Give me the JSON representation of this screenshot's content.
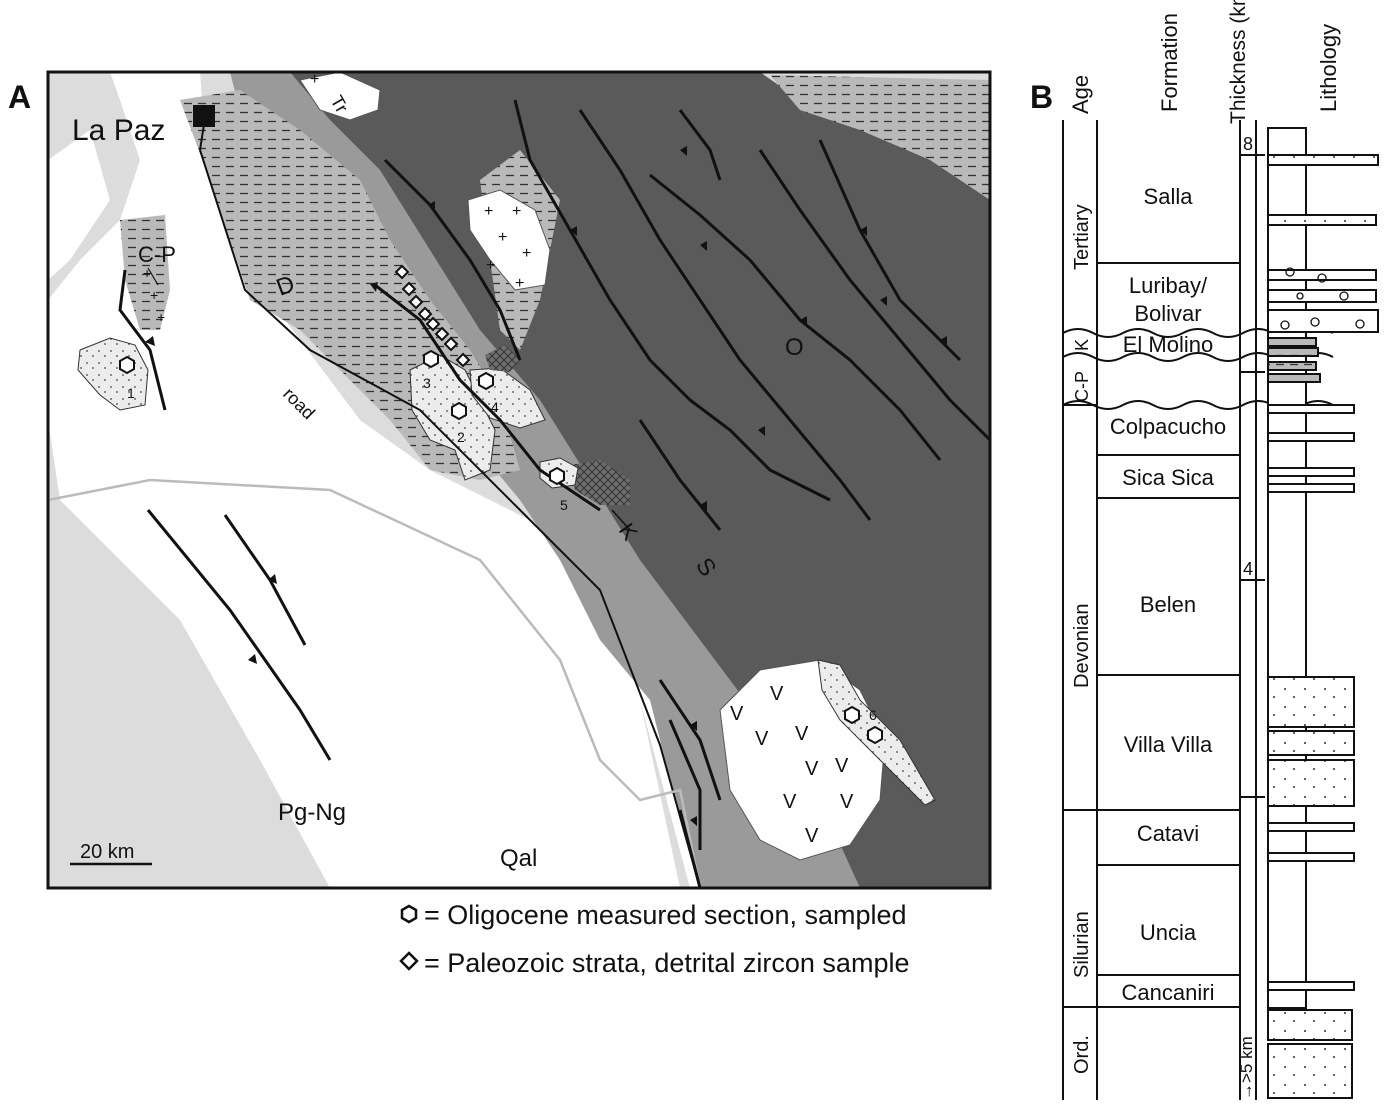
{
  "panel_a": {
    "label": "A",
    "city": "La Paz",
    "road_label": "road",
    "scale_label": "20 km",
    "units": {
      "Tr": "Tr",
      "CP": "C-P",
      "D": "D",
      "O": "O",
      "S": "S",
      "K": "K",
      "PgNg": "Pg-Ng",
      "Qal": "Qal"
    },
    "sites": [
      "1",
      "2",
      "3",
      "4",
      "5",
      "6"
    ],
    "legend": [
      {
        "symbol": "hexagon",
        "text": "= Oligocene measured section, sampled"
      },
      {
        "symbol": "diamond",
        "text": "= Paleozoic strata, detrital zircon sample"
      }
    ],
    "colors": {
      "light": "#dcdcdc",
      "medium": "#9a9a9a",
      "dark": "#5a5a5a",
      "stipple": "#e4e4e4"
    }
  },
  "panel_b": {
    "label": "B",
    "headers": {
      "age": "Age",
      "formation": "Formation",
      "thickness": "Thickness (km)",
      "lithology": "Lithology"
    },
    "thickness_marks": [
      "8",
      "4"
    ],
    "base_note": "→>5 km",
    "ages": [
      {
        "name": "Tertiary",
        "top": 120,
        "bottom": 333
      },
      {
        "name": "K",
        "top": 333,
        "bottom": 357
      },
      {
        "name": "C-P",
        "top": 357,
        "bottom": 405
      },
      {
        "name": "Devonian",
        "top": 405,
        "bottom": 810
      },
      {
        "name": "Silurian",
        "top": 810,
        "bottom": 1007
      },
      {
        "name": "Ord.",
        "top": 1007,
        "bottom": 1100
      }
    ],
    "formations": [
      {
        "name": "Salla"
      },
      {
        "name": "Luribay/"
      },
      {
        "name": "Bolivar"
      },
      {
        "name": "El Molino"
      },
      {
        "name": "Colpacucho"
      },
      {
        "name": "Sica Sica"
      },
      {
        "name": "Belen"
      },
      {
        "name": "Villa Villa"
      },
      {
        "name": "Catavi"
      },
      {
        "name": "Uncia"
      },
      {
        "name": "Cancaniri"
      }
    ]
  }
}
